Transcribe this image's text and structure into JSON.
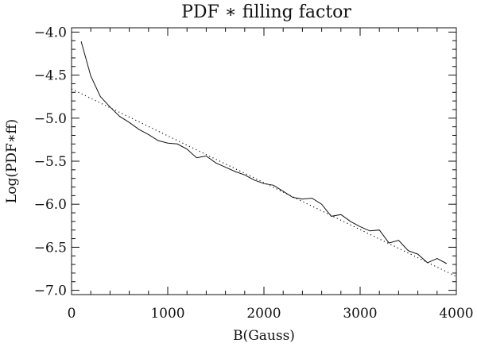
{
  "chart_data": {
    "type": "line",
    "title": "PDF ∗ filling factor",
    "xlabel": "B(Gauss)",
    "ylabel": "Log(PDF∗ff)",
    "xlim": [
      0,
      4000
    ],
    "ylim": [
      -7.05,
      -3.95
    ],
    "xticks": [
      0,
      1000,
      2000,
      3000,
      4000
    ],
    "xtick_labels": [
      "0",
      "1000",
      "2000",
      "3000",
      "4000"
    ],
    "yticks": [
      -7.0,
      -6.5,
      -6.0,
      -5.5,
      -5.0,
      -4.5,
      -4.0
    ],
    "ytick_labels": [
      "−7.0",
      "−6.5",
      "−6.0",
      "−5.5",
      "−5.0",
      "−4.5",
      "−4.0"
    ],
    "grid": false,
    "series": [
      {
        "line_style": "solid",
        "color": "#111111",
        "x": [
          100,
          200,
          300,
          400,
          500,
          600,
          700,
          800,
          900,
          1000,
          1100,
          1200,
          1300,
          1400,
          1500,
          1600,
          1700,
          1800,
          1900,
          2000,
          2100,
          2200,
          2300,
          2400,
          2500,
          2600,
          2700,
          2800,
          2900,
          3000,
          3100,
          3200,
          3300,
          3400,
          3500,
          3600,
          3700,
          3800,
          3900
        ],
        "y": [
          -4.11,
          -4.51,
          -4.75,
          -4.87,
          -4.98,
          -5.05,
          -5.13,
          -5.19,
          -5.26,
          -5.29,
          -5.3,
          -5.36,
          -5.46,
          -5.44,
          -5.52,
          -5.57,
          -5.62,
          -5.66,
          -5.72,
          -5.76,
          -5.78,
          -5.85,
          -5.92,
          -5.94,
          -5.93,
          -6.0,
          -6.14,
          -6.12,
          -6.2,
          -6.26,
          -6.31,
          -6.3,
          -6.45,
          -6.42,
          -6.54,
          -6.58,
          -6.68,
          -6.63,
          -6.69
        ]
      },
      {
        "line_style": "dotted",
        "color": "#111111",
        "x": [
          0,
          4000
        ],
        "y": [
          -4.66,
          -6.84
        ]
      }
    ]
  }
}
